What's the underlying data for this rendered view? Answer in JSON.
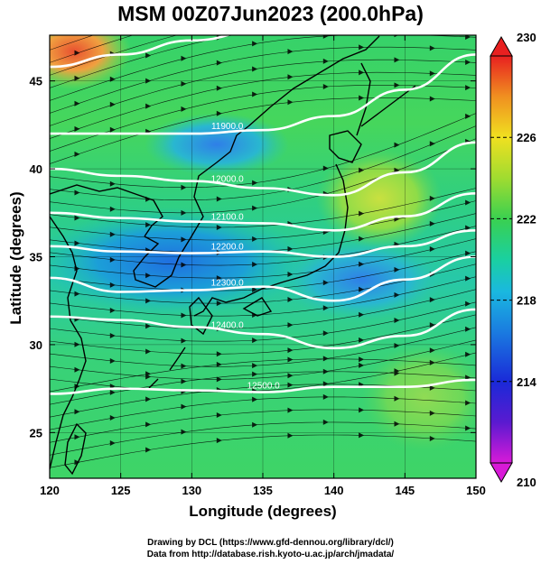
{
  "chart_data": {
    "type": "heatmap",
    "title": "MSM 00Z07Jun2023 (200.0hPa)",
    "xlabel": "Longitude (degrees)",
    "ylabel": "Latitude  (degrees)",
    "xlim": [
      120,
      150
    ],
    "ylim": [
      22.4,
      47.6
    ],
    "x_ticks": [
      120,
      125,
      130,
      135,
      140,
      145,
      150
    ],
    "y_ticks": [
      25,
      30,
      35,
      40,
      45
    ],
    "grid": true,
    "shaded_field": {
      "description": "temperature shading",
      "colorbar_range": [
        210,
        230
      ],
      "colorbar_ticks": [
        210,
        214,
        218,
        222,
        226,
        230
      ]
    },
    "contours": [
      {
        "value": 11900.0,
        "label": "11900.0",
        "lats": [
          45.8,
          46.5,
          47.3,
          47.9,
          48.3,
          48.6,
          48.9
        ]
      },
      {
        "value": 11900.0,
        "label": "11900.0",
        "lats": [
          42.0,
          42.0,
          42.0,
          42.2,
          43.0,
          44.5,
          46.5
        ]
      },
      {
        "value": 12000.0,
        "label": "12000.0",
        "lats": [
          40.0,
          39.6,
          39.3,
          38.9,
          38.5,
          39.8,
          41.5
        ]
      },
      {
        "value": 12100.0,
        "label": "12100.0",
        "lats": [
          37.5,
          37.2,
          37.0,
          36.9,
          36.5,
          37.3,
          38.6
        ]
      },
      {
        "value": 12200.0,
        "label": "12200.0",
        "lats": [
          35.6,
          35.3,
          35.2,
          35.3,
          35.0,
          35.6,
          36.5
        ]
      },
      {
        "value": 12300.0,
        "label": "12300.0",
        "lats": [
          33.8,
          33.0,
          33.1,
          33.3,
          32.5,
          33.7,
          35.0
        ]
      },
      {
        "value": 12400.0,
        "label": "12400.0",
        "lats": [
          31.6,
          31.4,
          31.0,
          30.6,
          29.8,
          30.5,
          32.0
        ]
      },
      {
        "value": 12500.0,
        "label": "12500.0",
        "lats": [
          27.2,
          27.5,
          27.4,
          27.3,
          27.6,
          27.6,
          28.0
        ]
      }
    ],
    "contour_lons": [
      120,
      125,
      130,
      135,
      140,
      145,
      150
    ],
    "coastline_note": "East Asia coastlines (Korea, Japan, China, Taiwan)"
  },
  "credits": {
    "line1": "Drawing by DCL (https://www.gfd-dennou.org/library/dcl/)",
    "line2": "Data from http://database.rish.kyoto-u.ac.jp/arch/jmadata/"
  }
}
